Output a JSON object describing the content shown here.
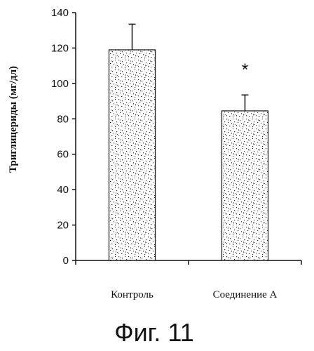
{
  "chart_data": {
    "type": "bar",
    "title": "",
    "xlabel": "",
    "ylabel": "Триглицериды (мг/дл)",
    "ylim": [
      0,
      140
    ],
    "yticks": [
      0,
      20,
      40,
      60,
      80,
      100,
      120,
      140
    ],
    "categories": [
      "Контроль",
      "Соединение А"
    ],
    "values": [
      119,
      84.5
    ],
    "error": [
      14.5,
      9
    ],
    "annotations": [
      "",
      "*"
    ],
    "grid": false,
    "legend": "none",
    "bar_fill": "stippled"
  },
  "caption": "Фиг. 11"
}
